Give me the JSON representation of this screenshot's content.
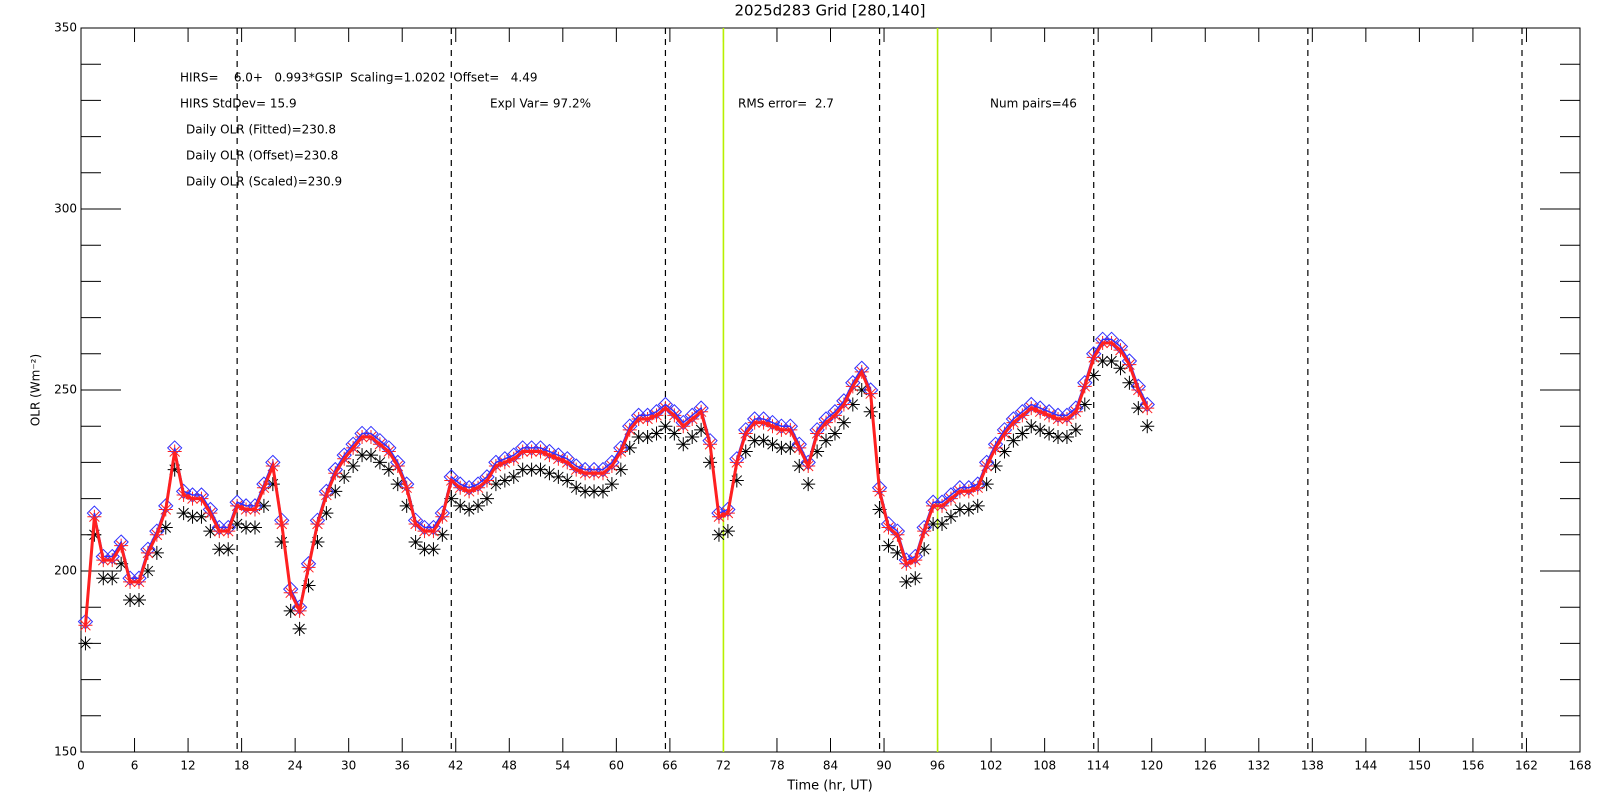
{
  "chart_data": {
    "type": "line",
    "title": "2025d283 Grid [280,140]",
    "xlabel": "Time (hr, UT)",
    "ylabel": "OLR (Wm⁻²)",
    "annotations": [
      "HIRS=    6.0+   0.993*GSIP  Scaling=1.0202  Offset=   4.49",
      "HIRS StdDev= 15.9",
      "Expl Var= 97.2%",
      "RMS error=  2.7",
      "Num pairs=46",
      "Daily OLR (Fitted)=230.8",
      "Daily OLR (Offset)=230.8",
      "Daily OLR (Scaled)=230.9"
    ],
    "xlim": [
      0,
      168
    ],
    "ylim": [
      150,
      350
    ],
    "xticks": [
      0,
      6,
      12,
      18,
      24,
      30,
      36,
      42,
      48,
      54,
      60,
      66,
      72,
      78,
      84,
      90,
      96,
      102,
      108,
      114,
      120,
      126,
      132,
      138,
      144,
      150,
      156,
      162,
      168
    ],
    "yticks": [
      150,
      200,
      250,
      300,
      350
    ],
    "yminorticks": [
      160,
      170,
      180,
      190,
      210,
      220,
      230,
      240,
      260,
      270,
      280,
      290,
      310,
      320,
      330,
      340
    ],
    "vlines": [
      {
        "value": 17.5,
        "color": "#000000",
        "dashed": true
      },
      {
        "value": 41.5,
        "color": "#000000",
        "dashed": true
      },
      {
        "value": 65.5,
        "color": "#000000",
        "dashed": true
      },
      {
        "value": 72,
        "color": "#b8f000",
        "dashed": false
      },
      {
        "value": 89.5,
        "color": "#000000",
        "dashed": true
      },
      {
        "value": 96,
        "color": "#b8f000",
        "dashed": false
      },
      {
        "value": 113.5,
        "color": "#000000",
        "dashed": true
      },
      {
        "value": 137.5,
        "color": "#000000",
        "dashed": true
      },
      {
        "value": 161.5,
        "color": "#000000",
        "dashed": true
      }
    ],
    "x": [
      0.5,
      1.5,
      2.5,
      3.5,
      4.5,
      5.5,
      6.5,
      7.5,
      8.5,
      9.5,
      10.5,
      11.5,
      12.5,
      13.5,
      14.5,
      15.5,
      16.5,
      17.5,
      18.5,
      19.5,
      20.5,
      21.5,
      22.5,
      23.5,
      24.5,
      25.5,
      26.5,
      27.5,
      28.5,
      29.5,
      30.5,
      31.5,
      32.5,
      33.5,
      34.5,
      35.5,
      36.5,
      37.5,
      38.5,
      39.5,
      40.5,
      41.5,
      42.5,
      43.5,
      44.5,
      45.5,
      46.5,
      47.5,
      48.5,
      49.5,
      50.5,
      51.5,
      52.5,
      53.5,
      54.5,
      55.5,
      56.5,
      57.5,
      58.5,
      59.5,
      60.5,
      61.5,
      62.5,
      63.5,
      64.5,
      65.5,
      66.5,
      67.5,
      68.5,
      69.5,
      70.5,
      71.5,
      72.5,
      73.5,
      74.5,
      75.5,
      76.5,
      77.5,
      78.5,
      79.5,
      80.5,
      81.5,
      82.5,
      83.5,
      84.5,
      85.5,
      86.5,
      87.5,
      88.5,
      89.5,
      90.5,
      91.5,
      92.5,
      93.5,
      94.5,
      95.5,
      96.5,
      97.5,
      98.5,
      99.5,
      100.5,
      101.5,
      102.5,
      103.5,
      104.5,
      105.5,
      106.5,
      107.5,
      108.5,
      109.5,
      110.5,
      111.5,
      112.5,
      113.5,
      114.5,
      115.5,
      116.5,
      117.5,
      118.5,
      119.5
    ],
    "series": [
      {
        "color": "#000000",
        "marker": "asterisk",
        "line": false,
        "values": [
          180,
          210,
          198,
          198,
          202,
          192,
          192,
          200,
          205,
          212,
          228,
          216,
          215,
          215,
          211,
          206,
          206,
          213,
          212,
          212,
          218,
          224,
          208,
          189,
          184,
          196,
          208,
          216,
          222,
          226,
          229,
          232,
          232,
          230,
          228,
          224,
          218,
          208,
          206,
          206,
          210,
          220,
          218,
          217,
          218,
          220,
          224,
          225,
          226,
          228,
          228,
          228,
          227,
          226,
          225,
          223,
          222,
          222,
          222,
          224,
          228,
          234,
          237,
          237,
          238,
          240,
          238,
          235,
          237,
          239,
          230,
          210,
          211,
          225,
          233,
          236,
          236,
          235,
          234,
          234,
          229,
          224,
          233,
          236,
          238,
          241,
          246,
          250,
          244,
          217,
          207,
          205,
          197,
          198,
          206,
          213,
          213,
          215,
          217,
          217,
          218,
          224,
          229,
          233,
          236,
          238,
          240,
          239,
          238,
          237,
          237,
          239,
          246,
          254,
          258,
          258,
          256,
          252,
          245,
          240
        ]
      },
      {
        "color": "#3030ff",
        "marker": "diamond",
        "line": true,
        "values": [
          186,
          216,
          204,
          204,
          208,
          198,
          198,
          206,
          211,
          218,
          234,
          222,
          221,
          221,
          217,
          212,
          212,
          219,
          218,
          218,
          224,
          230,
          214,
          195,
          190,
          202,
          214,
          222,
          228,
          232,
          235,
          238,
          238,
          236,
          234,
          230,
          224,
          214,
          212,
          212,
          216,
          226,
          224,
          223,
          224,
          226,
          230,
          231,
          232,
          234,
          234,
          234,
          233,
          232,
          231,
          229,
          228,
          228,
          228,
          230,
          234,
          240,
          243,
          243,
          244,
          246,
          244,
          241,
          243,
          245,
          236,
          216,
          217,
          231,
          239,
          242,
          242,
          241,
          240,
          240,
          235,
          230,
          239,
          242,
          244,
          247,
          252,
          256,
          250,
          223,
          213,
          211,
          203,
          204,
          212,
          219,
          219,
          221,
          223,
          223,
          224,
          230,
          235,
          239,
          242,
          244,
          246,
          245,
          244,
          243,
          243,
          245,
          252,
          260,
          264,
          264,
          262,
          258,
          251,
          246
        ]
      },
      {
        "color": "#ff2020",
        "marker": "asterisk",
        "line": true,
        "values": [
          185,
          215,
          203,
          203,
          207,
          197,
          197,
          205,
          210,
          217,
          233,
          221,
          220,
          220,
          216,
          211,
          211,
          218,
          217,
          217,
          223,
          229,
          213,
          194,
          189,
          201,
          213,
          221,
          227,
          231,
          234,
          237,
          237,
          235,
          233,
          229,
          223,
          213,
          211,
          211,
          215,
          225,
          223,
          222,
          223,
          225,
          229,
          230,
          231,
          233,
          233,
          233,
          232,
          231,
          230,
          228,
          227,
          227,
          227,
          229,
          233,
          239,
          242,
          242,
          243,
          245,
          243,
          240,
          242,
          244,
          235,
          215,
          216,
          230,
          238,
          241,
          241,
          240,
          239,
          239,
          234,
          229,
          238,
          241,
          243,
          246,
          251,
          255,
          249,
          222,
          212,
          210,
          202,
          203,
          211,
          218,
          218,
          220,
          222,
          222,
          223,
          229,
          234,
          238,
          241,
          243,
          245,
          244,
          243,
          242,
          242,
          244,
          251,
          259,
          263,
          263,
          261,
          257,
          250,
          245
        ]
      }
    ]
  }
}
